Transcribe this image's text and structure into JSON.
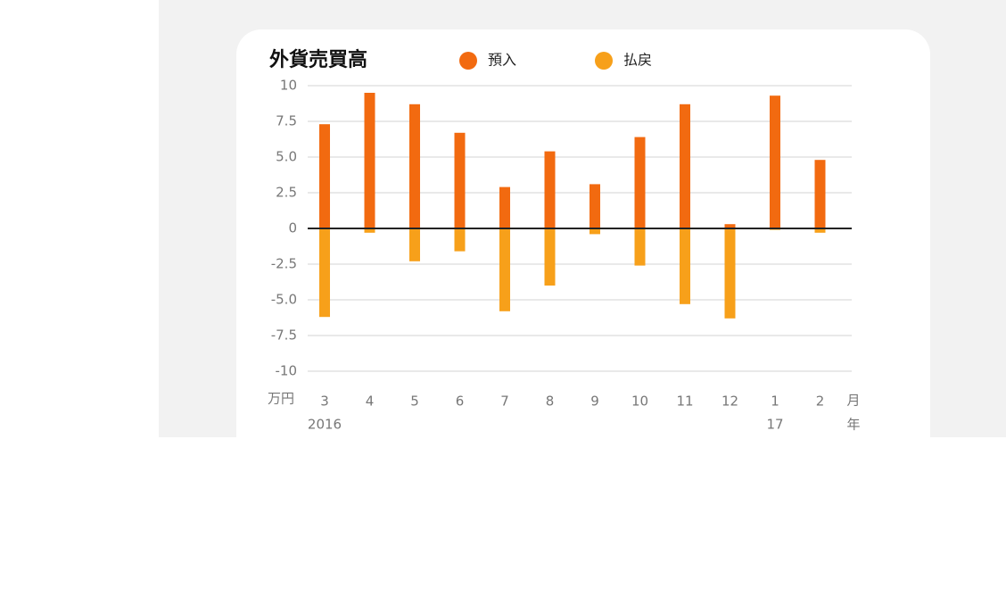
{
  "chart_data": {
    "type": "bar",
    "title": "外貨売買高",
    "categories": [
      "3",
      "4",
      "5",
      "6",
      "7",
      "8",
      "9",
      "10",
      "11",
      "12",
      "1",
      "2"
    ],
    "year_labels": [
      "2016",
      null,
      null,
      null,
      null,
      null,
      null,
      null,
      null,
      null,
      "17",
      null
    ],
    "y_unit": "万円",
    "x_unit_month": "月",
    "x_unit_year": "年",
    "series": [
      {
        "name": "預入",
        "color": "#f26a10",
        "values": [
          7.3,
          9.5,
          8.7,
          6.7,
          2.9,
          5.4,
          3.1,
          6.4,
          8.7,
          0.3,
          9.3,
          4.8
        ]
      },
      {
        "name": "払戻",
        "color": "#f7a01a",
        "values": [
          -6.2,
          -0.3,
          -2.3,
          -1.6,
          -5.8,
          -4.0,
          -0.4,
          -2.6,
          -5.3,
          -6.3,
          -0.1,
          -0.3
        ]
      }
    ],
    "ylim": [
      -10,
      10
    ],
    "yticks": [
      -10,
      -7.5,
      {
        "value": -5,
        "label": "-5.0"
      },
      -2.5,
      0,
      2.5,
      {
        "value": 5,
        "label": "5.0"
      },
      7.5,
      10
    ],
    "grid": true
  }
}
